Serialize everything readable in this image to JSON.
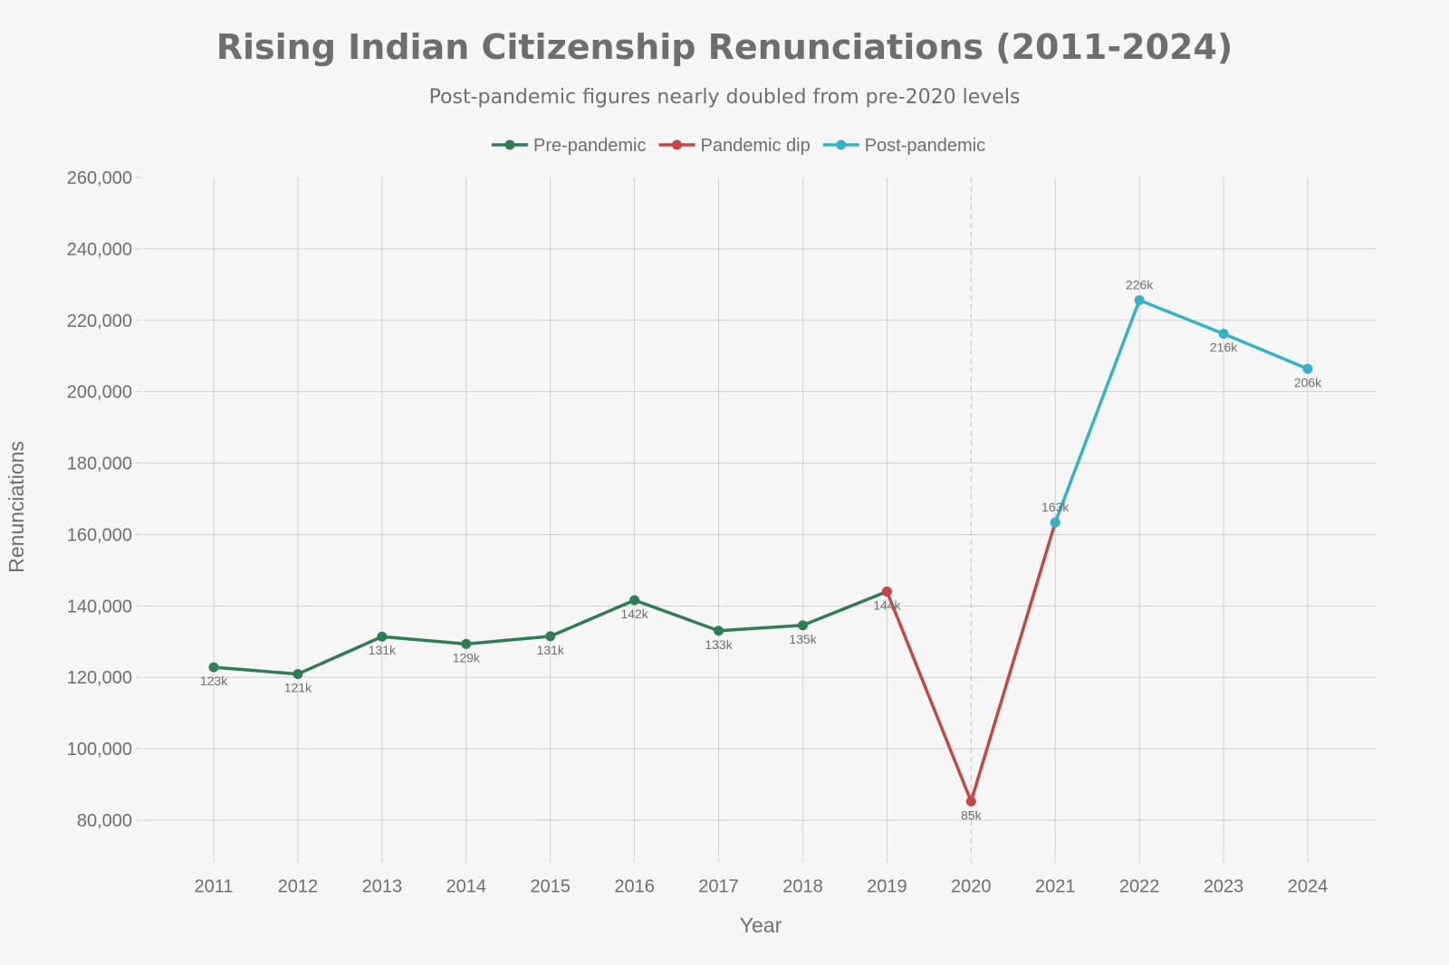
{
  "chart_data": {
    "type": "line",
    "title": "Rising Indian Citizenship Renunciations (2011-2024)",
    "subtitle": "Post-pandemic figures nearly doubled from pre-2020 levels",
    "xlabel": "Year",
    "ylabel": "Renunciations",
    "x": [
      2011,
      2012,
      2013,
      2014,
      2015,
      2016,
      2017,
      2018,
      2019,
      2020,
      2021,
      2022,
      2023,
      2024
    ],
    "ylim": [
      70000,
      260000
    ],
    "yticks": [
      80000,
      100000,
      120000,
      140000,
      160000,
      180000,
      200000,
      220000,
      240000,
      260000
    ],
    "ytick_labels": [
      "80,000",
      "100,000",
      "120,000",
      "140,000",
      "160,000",
      "180,000",
      "200,000",
      "220,000",
      "240,000",
      "260,000"
    ],
    "grid": true,
    "legend_position": "top-center",
    "reference_line": {
      "x": 2020,
      "style": "dashed"
    },
    "series": [
      {
        "name": "Pre-pandemic",
        "color": "#2e7d55",
        "x": [
          2011,
          2012,
          2013,
          2014,
          2015,
          2016,
          2017,
          2018,
          2019
        ],
        "values": [
          122819,
          120923,
          131405,
          129328,
          131489,
          141603,
          133049,
          134561,
          144017
        ],
        "labels": [
          "123k",
          "121k",
          "131k",
          "129k",
          "131k",
          "142k",
          "133k",
          "135k",
          "144k"
        ],
        "label_position": "below"
      },
      {
        "name": "Pandemic dip",
        "color": "#c94545",
        "x": [
          2019,
          2020,
          2021
        ],
        "values": [
          144017,
          85256,
          163370
        ],
        "labels": [
          "",
          "85k",
          ""
        ],
        "label_position": "below"
      },
      {
        "name": "Post-pandemic",
        "color": "#33b2c8",
        "x": [
          2021,
          2022,
          2023,
          2024
        ],
        "values": [
          163370,
          225620,
          216219,
          206378
        ],
        "labels": [
          "163k",
          "226k",
          "216k",
          "206k"
        ],
        "label_position": [
          "above",
          "above",
          "below",
          "below"
        ]
      }
    ]
  }
}
